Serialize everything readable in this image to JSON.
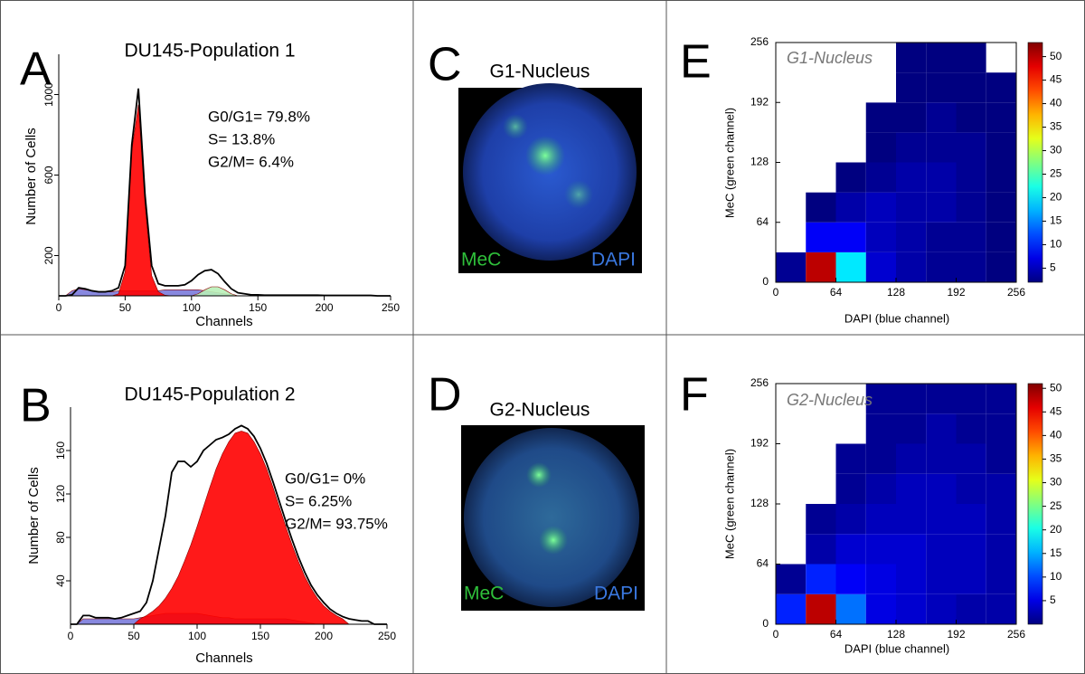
{
  "chart_data": [
    {
      "type": "area",
      "panel": "A",
      "title": "DU145-Population 1",
      "x_label": "Channels",
      "y_label": "Number of Cells",
      "annotations": [
        "G0/G1= 79.8%",
        "S= 13.8%",
        "G2/M= 6.4%"
      ],
      "xlim": [
        0,
        250
      ],
      "xticks": [
        0,
        50,
        100,
        150,
        200,
        250
      ],
      "ylim": [
        0,
        1200
      ],
      "yticks": [
        200,
        600,
        1000
      ],
      "x": [
        0,
        5,
        10,
        15,
        20,
        25,
        30,
        35,
        40,
        45,
        50,
        55,
        60,
        65,
        70,
        75,
        80,
        85,
        90,
        95,
        100,
        105,
        110,
        115,
        120,
        125,
        130,
        135,
        140,
        145,
        150,
        155,
        160,
        165,
        170,
        175,
        180,
        185,
        190,
        195,
        200,
        205,
        210,
        215,
        220,
        225,
        230,
        235,
        240,
        245,
        250
      ],
      "series": [
        {
          "color": "#7b7bdb",
          "values": [
            0,
            0,
            25,
            35,
            30,
            25,
            20,
            20,
            20,
            25,
            25,
            25,
            25,
            25,
            25,
            25,
            30,
            30,
            30,
            30,
            30,
            30,
            25,
            20,
            15,
            10,
            5,
            0,
            0,
            0,
            0,
            0,
            0,
            0,
            0,
            0,
            0,
            0,
            0,
            0,
            0,
            0,
            0,
            0,
            0,
            0,
            0,
            0,
            0,
            0,
            0
          ]
        },
        {
          "color": "#b8f0b8",
          "values": [
            0,
            0,
            0,
            0,
            0,
            0,
            0,
            0,
            0,
            0,
            0,
            0,
            0,
            0,
            0,
            0,
            0,
            0,
            0,
            0,
            0,
            10,
            30,
            45,
            45,
            30,
            10,
            0,
            0,
            0,
            0,
            0,
            0,
            0,
            0,
            0,
            0,
            0,
            0,
            0,
            0,
            0,
            0,
            0,
            0,
            0,
            0,
            0,
            0,
            0,
            0
          ]
        },
        {
          "color": "#ff0000",
          "values": [
            0,
            0,
            0,
            0,
            0,
            0,
            0,
            0,
            0,
            10,
            120,
            720,
            950,
            450,
            100,
            20,
            3,
            0,
            0,
            0,
            0,
            0,
            0,
            0,
            0,
            0,
            0,
            0,
            0,
            0,
            0,
            0,
            0,
            0,
            0,
            0,
            0,
            0,
            0,
            0,
            0,
            0,
            0,
            0,
            0,
            0,
            0,
            0,
            0,
            0,
            0
          ]
        },
        {
          "color": "#000000",
          "line": true,
          "values": [
            0,
            0,
            5,
            40,
            35,
            25,
            20,
            20,
            25,
            40,
            150,
            750,
            1030,
            500,
            150,
            60,
            50,
            50,
            50,
            55,
            75,
            105,
            125,
            130,
            110,
            70,
            35,
            15,
            10,
            5,
            5,
            3,
            3,
            3,
            3,
            3,
            3,
            3,
            3,
            3,
            2,
            2,
            2,
            2,
            2,
            2,
            2,
            2,
            0,
            0,
            0
          ]
        }
      ]
    },
    {
      "type": "area",
      "panel": "B",
      "title": "DU145-Population 2",
      "x_label": "Channels",
      "y_label": "Number of Cells",
      "annotations": [
        "G0/G1= 0%",
        "S= 6.25%",
        "G2/M= 93.75%"
      ],
      "xlim": [
        0,
        250
      ],
      "xticks": [
        0,
        50,
        100,
        150,
        200,
        250
      ],
      "ylim": [
        0,
        200
      ],
      "yticks": [
        40,
        80,
        120,
        160
      ],
      "x": [
        0,
        5,
        10,
        15,
        20,
        25,
        30,
        35,
        40,
        45,
        50,
        55,
        60,
        65,
        70,
        75,
        80,
        85,
        90,
        95,
        100,
        105,
        110,
        115,
        120,
        125,
        130,
        135,
        140,
        145,
        150,
        155,
        160,
        165,
        170,
        175,
        180,
        185,
        190,
        195,
        200,
        205,
        210,
        215,
        220,
        225,
        230,
        235,
        240,
        245,
        250
      ],
      "series": [
        {
          "color": "#7b7bdb",
          "values": [
            0,
            0,
            5,
            5,
            5,
            5,
            5,
            5,
            5,
            5,
            5,
            6,
            7,
            8,
            9,
            10,
            10,
            10,
            10,
            10,
            10,
            9,
            8,
            7,
            6,
            6,
            5,
            5,
            5,
            5,
            5,
            5,
            5,
            5,
            5,
            4,
            3,
            2,
            1,
            0,
            0,
            0,
            0,
            0,
            0,
            0,
            0,
            0,
            0,
            0,
            0
          ]
        },
        {
          "color": "#ff0000",
          "values": [
            0,
            0,
            0,
            0,
            0,
            0,
            0,
            0,
            0,
            0,
            0,
            5,
            8,
            12,
            17,
            24,
            33,
            44,
            58,
            73,
            90,
            108,
            126,
            143,
            157,
            168,
            176,
            178,
            176,
            168,
            157,
            143,
            126,
            108,
            90,
            73,
            58,
            44,
            33,
            24,
            17,
            12,
            8,
            5,
            0,
            0,
            0,
            0,
            0,
            0,
            0
          ]
        },
        {
          "color": "#000000",
          "line": true,
          "values": [
            0,
            0,
            8,
            8,
            6,
            6,
            6,
            5,
            6,
            8,
            10,
            12,
            20,
            40,
            70,
            100,
            140,
            150,
            150,
            145,
            150,
            160,
            165,
            170,
            172,
            175,
            180,
            183,
            180,
            173,
            162,
            148,
            131,
            113,
            95,
            78,
            62,
            48,
            36,
            27,
            20,
            14,
            10,
            7,
            5,
            4,
            3,
            3,
            0,
            0,
            0
          ]
        }
      ]
    },
    {
      "type": "heatmap",
      "panel": "E",
      "title": "G1-Nucleus",
      "x_label": "DAPI (blue channel)",
      "y_label": "MeC (green channel)",
      "xlim": [
        0,
        256
      ],
      "xticks": [
        0,
        64,
        128,
        192,
        256
      ],
      "ylim": [
        0,
        256
      ],
      "yticks": [
        0,
        64,
        128,
        192,
        256
      ],
      "xbins": [
        0,
        32,
        64,
        96,
        128,
        160,
        192,
        224,
        256
      ],
      "ybins": [
        0,
        32,
        64,
        96,
        128,
        160,
        192,
        224,
        256
      ],
      "zlim": [
        2,
        53
      ],
      "zticks": [
        5,
        10,
        15,
        20,
        25,
        30,
        35,
        40,
        45,
        50
      ],
      "values": [
        [
          3,
          50,
          20,
          6,
          4,
          3,
          3,
          2
        ],
        [
          0,
          8,
          8,
          5,
          4,
          3,
          3,
          2
        ],
        [
          0,
          1,
          4,
          5,
          4,
          4,
          3,
          2
        ],
        [
          0,
          0,
          1,
          3,
          4,
          4,
          3,
          2
        ],
        [
          0,
          0,
          0,
          2,
          3,
          3,
          3,
          1
        ],
        [
          0,
          0,
          0,
          1,
          2,
          3,
          2,
          1
        ],
        [
          0,
          0,
          0,
          0,
          1,
          2,
          1,
          1
        ],
        [
          0,
          0,
          0,
          0,
          1,
          1,
          1,
          0
        ]
      ]
    },
    {
      "type": "heatmap",
      "panel": "F",
      "title": "G2-Nucleus",
      "x_label": "DAPI (blue channel)",
      "y_label": "MeC (green channel)",
      "xlim": [
        0,
        256
      ],
      "xticks": [
        0,
        64,
        128,
        192,
        256
      ],
      "ylim": [
        0,
        256
      ],
      "yticks": [
        0,
        64,
        128,
        192,
        256
      ],
      "xbins": [
        0,
        32,
        64,
        96,
        128,
        160,
        192,
        224,
        256
      ],
      "ybins": [
        0,
        32,
        64,
        96,
        128,
        160,
        192,
        224,
        256
      ],
      "zlim": [
        0,
        51
      ],
      "zticks": [
        5,
        10,
        15,
        20,
        25,
        30,
        35,
        40,
        45,
        50
      ],
      "values": [
        [
          8,
          48,
          12,
          5,
          4,
          3,
          2,
          2
        ],
        [
          1,
          8,
          6,
          5,
          4,
          3,
          3,
          2
        ],
        [
          0,
          2,
          4,
          4,
          4,
          3,
          3,
          2
        ],
        [
          0,
          1,
          2,
          3,
          3,
          3,
          3,
          2
        ],
        [
          0,
          0,
          1,
          2,
          3,
          3,
          2,
          2
        ],
        [
          0,
          0,
          1,
          1,
          2,
          2,
          2,
          1
        ],
        [
          0,
          0,
          0,
          1,
          1,
          2,
          1,
          1
        ],
        [
          0,
          0,
          0,
          1,
          1,
          1,
          1,
          1
        ]
      ]
    }
  ],
  "images": [
    {
      "panel": "C",
      "title": "G1-Nucleus",
      "channels": [
        "MeC",
        "DAPI"
      ]
    },
    {
      "panel": "D",
      "title": "G2-Nucleus",
      "channels": [
        "MeC",
        "DAPI"
      ]
    }
  ]
}
